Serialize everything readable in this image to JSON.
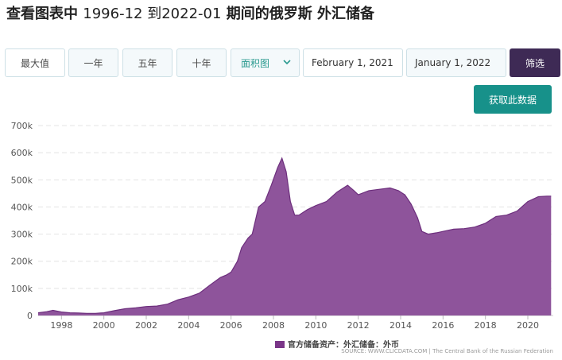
{
  "page": {
    "title_bold": "查看图表中",
    "title_range": "1996-12 到2022-01",
    "title_tail": "期间的俄罗斯 外汇储备"
  },
  "toolbar": {
    "max_label": "最大值",
    "one_year_label": "一年",
    "five_year_label": "五年",
    "ten_year_label": "十年",
    "chart_type_selected": "面积图",
    "start_date": "February 1, 2021",
    "end_date": "January 1, 2022",
    "filter_label": "筛选",
    "get_data_label": "获取此数据"
  },
  "colors": {
    "area_fill": "#8e549b",
    "area_stroke": "#6d2f7d",
    "legend_swatch": "#7a3688",
    "accent_dark": "#3e2a55",
    "accent_teal": "#17918a"
  },
  "chart_data": {
    "type": "area",
    "title": "",
    "xlabel": "",
    "ylabel": "",
    "x_range": [
      1996.9,
      2021.2
    ],
    "ylim": [
      0,
      700000
    ],
    "y_ticks": [
      0,
      100000,
      200000,
      300000,
      400000,
      500000,
      600000,
      700000
    ],
    "y_tick_labels": [
      "0",
      "100k",
      "200k",
      "300k",
      "400k",
      "500k",
      "600k",
      "700k"
    ],
    "x_ticks": [
      1998,
      2000,
      2002,
      2004,
      2006,
      2008,
      2010,
      2012,
      2014,
      2016,
      2018,
      2020
    ],
    "x_tick_labels": [
      "1998",
      "2000",
      "2002",
      "2004",
      "2006",
      "2008",
      "2010",
      "2012",
      "2014",
      "2016",
      "2018",
      "2020"
    ],
    "grid": true,
    "legend_position": "bottom-right",
    "series": [
      {
        "name": "官方储备资产：外汇储备：外币",
        "x": [
          1996.9,
          1997.3,
          1997.6,
          1998.0,
          1998.4,
          1998.8,
          1999.2,
          1999.6,
          2000.0,
          2000.5,
          2001.0,
          2001.5,
          2002.0,
          2002.5,
          2003.0,
          2003.5,
          2004.0,
          2004.5,
          2005.0,
          2005.5,
          2005.8,
          2006.0,
          2006.3,
          2006.5,
          2006.8,
          2007.0,
          2007.3,
          2007.6,
          2007.9,
          2008.2,
          2008.4,
          2008.6,
          2008.8,
          2009.0,
          2009.2,
          2009.6,
          2010.0,
          2010.5,
          2011.0,
          2011.5,
          2011.8,
          2012.0,
          2012.5,
          2013.0,
          2013.5,
          2013.9,
          2014.2,
          2014.5,
          2014.8,
          2015.0,
          2015.3,
          2015.7,
          2016.0,
          2016.5,
          2017.0,
          2017.5,
          2018.0,
          2018.5,
          2019.0,
          2019.5,
          2020.0,
          2020.5,
          2020.9,
          2021.1
        ],
        "y": [
          10000,
          14000,
          19000,
          13000,
          10000,
          9000,
          8000,
          8000,
          10000,
          18000,
          25000,
          28000,
          33000,
          35000,
          42000,
          58000,
          68000,
          82000,
          112000,
          140000,
          150000,
          160000,
          200000,
          250000,
          285000,
          300000,
          400000,
          420000,
          480000,
          545000,
          580000,
          530000,
          420000,
          370000,
          370000,
          390000,
          405000,
          420000,
          455000,
          480000,
          460000,
          445000,
          460000,
          465000,
          470000,
          460000,
          445000,
          410000,
          360000,
          310000,
          300000,
          305000,
          310000,
          318000,
          320000,
          326000,
          340000,
          365000,
          370000,
          385000,
          420000,
          438000,
          440000,
          440000
        ]
      }
    ],
    "source": "SOURCE: WWW.CLICDATA.COM | The Central Bank of the Russian Federation"
  }
}
